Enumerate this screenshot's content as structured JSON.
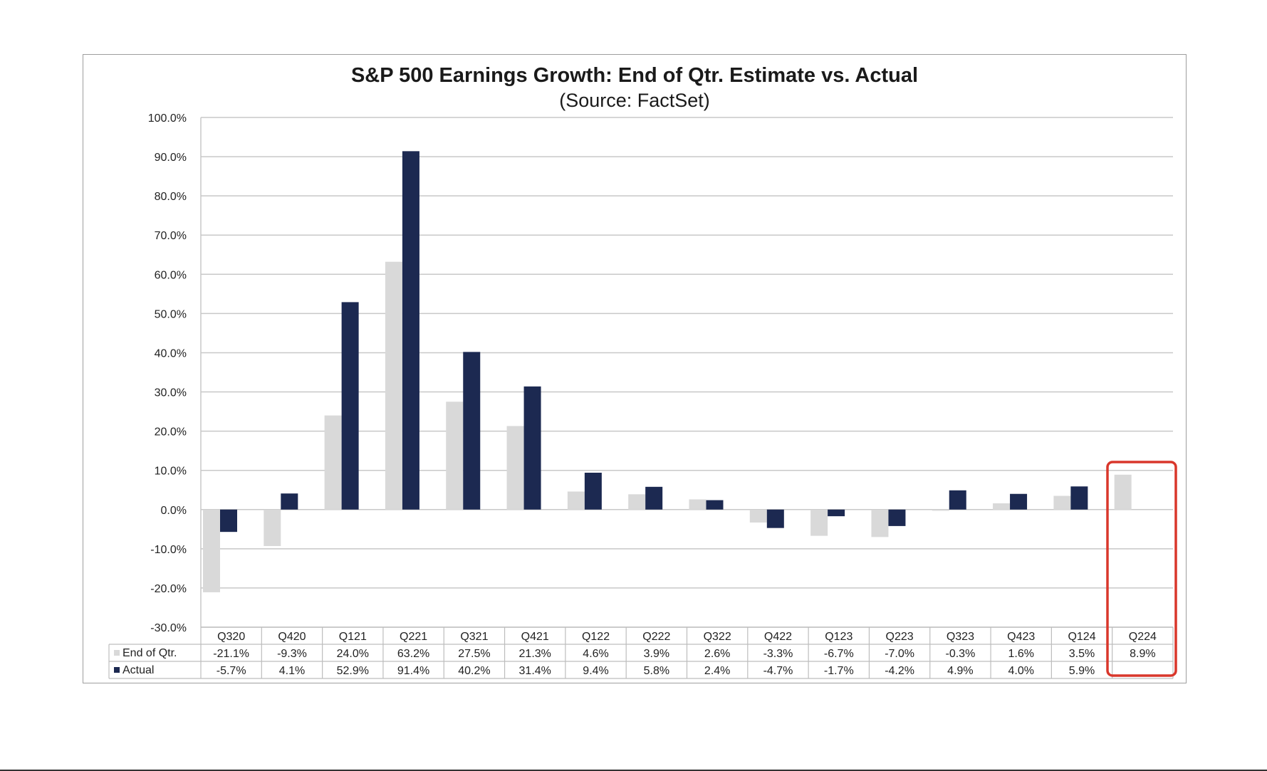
{
  "chart_data": {
    "type": "bar",
    "title": "S&P 500 Earnings Growth:  End of Qtr. Estimate vs. Actual",
    "subtitle": "(Source:  FactSet)",
    "categories": [
      "Q320",
      "Q420",
      "Q121",
      "Q221",
      "Q321",
      "Q421",
      "Q122",
      "Q222",
      "Q322",
      "Q422",
      "Q123",
      "Q223",
      "Q323",
      "Q423",
      "Q124",
      "Q224"
    ],
    "series": [
      {
        "name": "End of Qtr.",
        "color": "#d9d9d9",
        "values": [
          -21.1,
          -9.3,
          24.0,
          63.2,
          27.5,
          21.3,
          4.6,
          3.9,
          2.6,
          -3.3,
          -6.7,
          -7.0,
          -0.3,
          1.6,
          3.5,
          8.9
        ],
        "labels": [
          "-21.1%",
          "-9.3%",
          "24.0%",
          "63.2%",
          "27.5%",
          "21.3%",
          "4.6%",
          "3.9%",
          "2.6%",
          "-3.3%",
          "-6.7%",
          "-7.0%",
          "-0.3%",
          "1.6%",
          "3.5%",
          "8.9%"
        ]
      },
      {
        "name": "Actual",
        "color": "#1c2951",
        "values": [
          -5.7,
          4.1,
          52.9,
          91.4,
          40.2,
          31.4,
          9.4,
          5.8,
          2.4,
          -4.7,
          -1.7,
          -4.2,
          4.9,
          4.0,
          5.9,
          null
        ],
        "labels": [
          "-5.7%",
          "4.1%",
          "52.9%",
          "91.4%",
          "40.2%",
          "31.4%",
          "9.4%",
          "5.8%",
          "2.4%",
          "-4.7%",
          "-1.7%",
          "-4.2%",
          "4.9%",
          "4.0%",
          "5.9%",
          ""
        ]
      }
    ],
    "ylim": [
      -30,
      100
    ],
    "yticks": [
      "100.0%",
      "90.0%",
      "80.0%",
      "70.0%",
      "60.0%",
      "50.0%",
      "40.0%",
      "30.0%",
      "20.0%",
      "10.0%",
      "0.0%",
      "-10.0%",
      "-20.0%",
      "-30.0%"
    ],
    "ytick_values": [
      100,
      90,
      80,
      70,
      60,
      50,
      40,
      30,
      20,
      10,
      0,
      -10,
      -20,
      -30
    ],
    "grid": true,
    "legend_placement": "data-table",
    "highlight": {
      "category": "Q224",
      "color": "#d9372b"
    }
  }
}
